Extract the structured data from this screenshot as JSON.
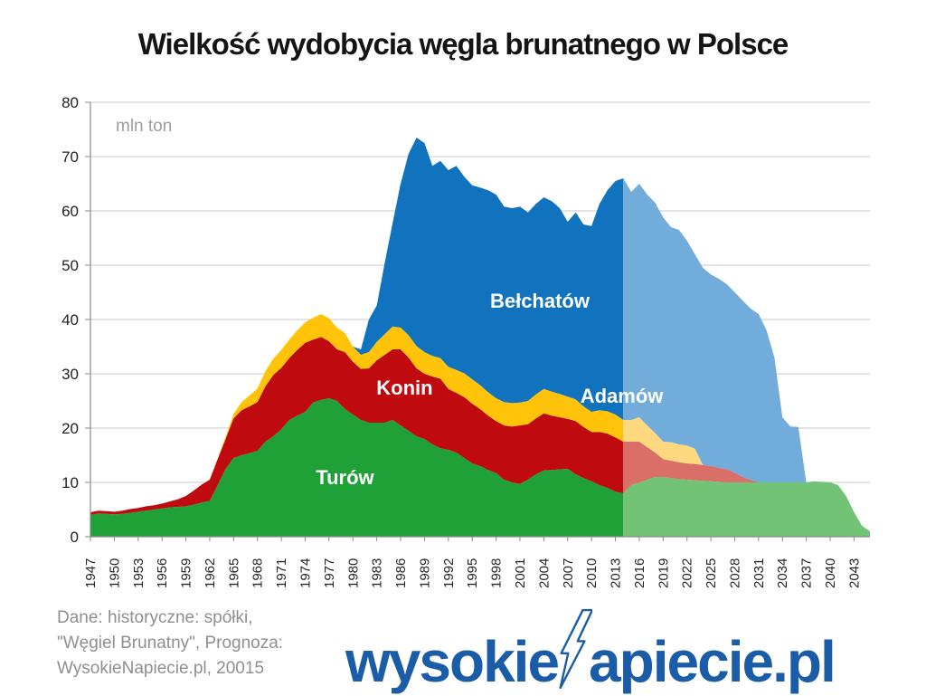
{
  "title": "Wielkość wydobycia węgla brunatnego w Polsce",
  "chart_data": {
    "type": "area",
    "stacked": true,
    "title": "Wielkość wydobycia węgla brunatnego w Polsce",
    "unit_label": "mln ton",
    "ylim": [
      0,
      80
    ],
    "y_ticks": [
      0,
      10,
      20,
      30,
      40,
      50,
      60,
      70,
      80
    ],
    "x_tick_years": [
      1947,
      1950,
      1953,
      1956,
      1959,
      1962,
      1965,
      1968,
      1971,
      1974,
      1977,
      1980,
      1983,
      1986,
      1989,
      1992,
      1995,
      1998,
      2001,
      2004,
      2007,
      2010,
      2013,
      2016,
      2019,
      2022,
      2025,
      2028,
      2031,
      2034,
      2037,
      2040,
      2043
    ],
    "forecast_start": 2014,
    "grid": true,
    "legend_position": "none",
    "years": [
      1947,
      1948,
      1949,
      1950,
      1951,
      1952,
      1953,
      1954,
      1955,
      1956,
      1957,
      1958,
      1959,
      1960,
      1961,
      1962,
      1963,
      1964,
      1965,
      1966,
      1967,
      1968,
      1969,
      1970,
      1971,
      1972,
      1973,
      1974,
      1975,
      1976,
      1977,
      1978,
      1979,
      1980,
      1981,
      1982,
      1983,
      1984,
      1985,
      1986,
      1987,
      1988,
      1989,
      1990,
      1991,
      1992,
      1993,
      1994,
      1995,
      1996,
      1997,
      1998,
      1999,
      2000,
      2001,
      2002,
      2003,
      2004,
      2005,
      2006,
      2007,
      2008,
      2009,
      2010,
      2011,
      2012,
      2013,
      2014,
      2015,
      2016,
      2017,
      2018,
      2019,
      2020,
      2021,
      2022,
      2023,
      2024,
      2025,
      2026,
      2027,
      2028,
      2029,
      2030,
      2031,
      2032,
      2033,
      2034,
      2035,
      2036,
      2037,
      2038,
      2039,
      2040,
      2041,
      2042,
      2043,
      2044,
      2045
    ],
    "series": [
      {
        "name": "Turów",
        "color": "#1fa138",
        "forecast_color": "#72c376",
        "values": [
          4.0,
          4.3,
          4.2,
          4.1,
          4.2,
          4.4,
          4.6,
          4.8,
          5.0,
          5.2,
          5.4,
          5.5,
          5.6,
          5.9,
          6.3,
          6.6,
          9.5,
          12.5,
          14.5,
          15.0,
          15.4,
          15.8,
          17.5,
          18.5,
          19.8,
          21.5,
          22.3,
          23.0,
          24.7,
          25.2,
          25.5,
          25.0,
          23.5,
          22.5,
          21.5,
          21.0,
          21.0,
          21.0,
          21.5,
          20.5,
          19.5,
          18.5,
          18.0,
          17.0,
          16.3,
          16.0,
          15.5,
          14.5,
          13.5,
          13.0,
          12.3,
          11.7,
          10.5,
          10.0,
          9.7,
          10.5,
          11.5,
          12.2,
          12.3,
          12.4,
          12.5,
          11.5,
          10.8,
          10.2,
          9.5,
          9.0,
          8.3,
          8.0,
          9.5,
          10.0,
          10.5,
          11.0,
          11.0,
          10.8,
          10.6,
          10.5,
          10.4,
          10.3,
          10.2,
          10.1,
          10.0,
          10.0,
          10.0,
          10.0,
          10.0,
          10.0,
          10.0,
          10.0,
          10.0,
          10.0,
          10.0,
          10.2,
          10.1,
          10.0,
          9.5,
          7.5,
          4.5,
          2.0,
          1.0
        ]
      },
      {
        "name": "Konin",
        "color": "#bf0b10",
        "forecast_color": "#d96f66",
        "values": [
          0.5,
          0.5,
          0.5,
          0.5,
          0.6,
          0.7,
          0.7,
          0.8,
          0.8,
          0.9,
          1.1,
          1.4,
          1.9,
          2.6,
          3.3,
          3.9,
          4.8,
          5.5,
          7.3,
          8.3,
          8.6,
          9.0,
          10.2,
          11.3,
          11.3,
          11.4,
          12.1,
          12.7,
          11.6,
          11.6,
          10.5,
          9.5,
          10.5,
          9.7,
          9.4,
          10.0,
          11.5,
          12.5,
          13.0,
          14.0,
          13.5,
          12.5,
          12.0,
          12.5,
          12.8,
          11.2,
          11.0,
          11.2,
          11.0,
          10.5,
          10.0,
          9.6,
          10.0,
          10.3,
          10.8,
          10.2,
          10.3,
          10.5,
          10.0,
          9.6,
          9.2,
          9.8,
          9.4,
          9.1,
          9.8,
          10.0,
          10.0,
          9.5,
          8.0,
          7.5,
          6.0,
          4.5,
          3.3,
          3.2,
          3.1,
          3.0,
          3.0,
          2.9,
          2.8,
          2.6,
          2.4,
          1.8,
          1.0,
          0.5,
          0,
          0,
          0,
          0,
          0,
          0,
          0,
          0,
          0,
          0,
          0,
          0,
          0,
          0,
          0
        ]
      },
      {
        "name": "Adamów",
        "color": "#ffc40a",
        "forecast_color": "#fed87e",
        "values": [
          0,
          0,
          0,
          0,
          0,
          0,
          0,
          0,
          0,
          0,
          0,
          0,
          0,
          0,
          0,
          0,
          0.1,
          0.4,
          0.8,
          1.5,
          2.0,
          2.5,
          2.8,
          3.0,
          3.3,
          3.4,
          3.6,
          3.8,
          4.0,
          4.2,
          4.2,
          4.0,
          3.5,
          2.8,
          2.6,
          3.0,
          3.4,
          3.8,
          4.2,
          4.0,
          4.1,
          4.1,
          4.0,
          3.8,
          3.8,
          4.1,
          4.2,
          4.4,
          4.5,
          4.4,
          4.3,
          4.2,
          4.3,
          4.3,
          4.2,
          4.3,
          4.4,
          4.5,
          4.4,
          4.3,
          4.1,
          4.0,
          3.8,
          3.7,
          4.0,
          4.1,
          4.2,
          4.0,
          4.0,
          4.5,
          4.0,
          3.6,
          3.2,
          3.4,
          3.3,
          3.3,
          2.8,
          0,
          0,
          0,
          0,
          0,
          0,
          0,
          0,
          0,
          0,
          0,
          0,
          0,
          0,
          0,
          0,
          0,
          0,
          0,
          0,
          0,
          0
        ]
      },
      {
        "name": "Bełchatów",
        "color": "#1173bd",
        "forecast_color": "#72acdb",
        "values": [
          0,
          0,
          0,
          0,
          0,
          0,
          0,
          0,
          0,
          0,
          0,
          0,
          0,
          0,
          0,
          0,
          0,
          0,
          0,
          0,
          0,
          0,
          0,
          0,
          0,
          0,
          0,
          0,
          0,
          0,
          0,
          0,
          0,
          0,
          1.0,
          6.0,
          6.7,
          13.1,
          19.1,
          26.5,
          33.4,
          38.4,
          38.5,
          35.0,
          36.3,
          36.2,
          37.6,
          36.2,
          35.7,
          36.4,
          37.2,
          37.5,
          36.0,
          35.9,
          36.1,
          34.7,
          35.1,
          35.3,
          35.1,
          34.2,
          32.2,
          34.4,
          33.5,
          34.2,
          38.0,
          40.7,
          43.0,
          44.5,
          42.0,
          43.0,
          42.5,
          42.4,
          41.3,
          39.6,
          39.5,
          37.7,
          35.8,
          36.3,
          35.3,
          34.8,
          34.1,
          33.2,
          32.5,
          31.5,
          31.0,
          28.0,
          23.0,
          12.0,
          10.3,
          10.2,
          0,
          0,
          0,
          0,
          0,
          0,
          0,
          0,
          0
        ]
      }
    ],
    "labels": [
      {
        "text": "Turów",
        "year": 1979,
        "value": 11,
        "color": "#ffffff"
      },
      {
        "text": "Konin",
        "year": 1986.5,
        "value": 27.5,
        "color": "#ffffff"
      },
      {
        "text": "Adamów",
        "year": 2013.8,
        "value": 26,
        "color": "#ffffff"
      },
      {
        "text": "Bełchatów",
        "year": 2003.5,
        "value": 43.5,
        "color": "#ffffff"
      }
    ]
  },
  "source_note": {
    "lines": [
      "Dane: historyczne: spółki,",
      "\"Węgiel Brunatny\",  Prognoza:",
      "WysokieNapiecie.pl, 20015"
    ]
  },
  "logo": {
    "prefix": "wysokie",
    "suffix": "apiecie.pl",
    "color": "#1b5ca8"
  }
}
